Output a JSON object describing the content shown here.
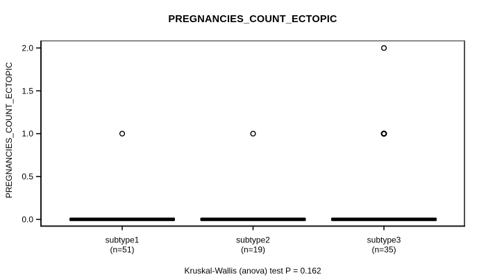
{
  "chart_data": {
    "type": "boxplot",
    "title": "PREGNANCIES_COUNT_ECTOPIC",
    "ylabel": "PREGNANCIES_COUNT_ECTOPIC",
    "caption": "Kruskal-Wallis (anova) test P = 0.162",
    "statistical_test": "Kruskal-Wallis (anova)",
    "p_value": 0.162,
    "ylim": [
      0,
      2
    ],
    "yticks": [
      {
        "label": "0.0",
        "value": 0
      },
      {
        "label": "0.5",
        "value": 0.5
      },
      {
        "label": "1.0",
        "value": 1
      },
      {
        "label": "1.5",
        "value": 1.5
      },
      {
        "label": "2.0",
        "value": 2
      }
    ],
    "groups": [
      {
        "label": "subtype1",
        "n_label": "(n=51)",
        "n": 51,
        "median": 0,
        "q1": 0,
        "q3": 0,
        "whisker_low": 0,
        "whisker_high": 0,
        "outliers": [
          {
            "value": 1,
            "overplotted": false
          }
        ]
      },
      {
        "label": "subtype2",
        "n_label": "(n=19)",
        "n": 19,
        "median": 0,
        "q1": 0,
        "q3": 0,
        "whisker_low": 0,
        "whisker_high": 0,
        "outliers": [
          {
            "value": 1,
            "overplotted": false
          }
        ]
      },
      {
        "label": "subtype3",
        "n_label": "(n=35)",
        "n": 35,
        "median": 0,
        "q1": 0,
        "q3": 0,
        "whisker_low": 0,
        "whisker_high": 0,
        "outliers": [
          {
            "value": 1,
            "overplotted": true
          },
          {
            "value": 2,
            "overplotted": false
          }
        ]
      }
    ],
    "legend": null,
    "grid": false,
    "colors": {
      "background": "#ffffff",
      "text": "#000000",
      "box": "#000000",
      "outlier_stroke": "#000000",
      "border_top": "#8b8b8b",
      "border_right": "#4f4f4f",
      "border_main": "#161616"
    }
  }
}
